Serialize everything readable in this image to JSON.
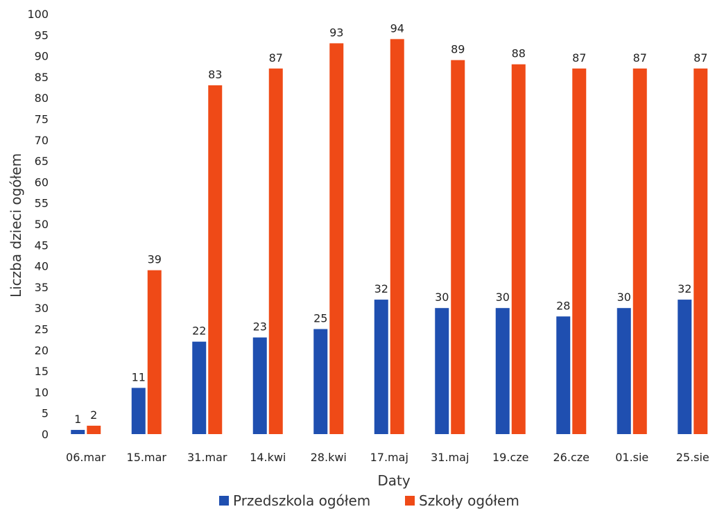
{
  "chart_data": {
    "type": "bar",
    "title": "",
    "xlabel": "Daty",
    "ylabel": "Liczba dzieci ogółem",
    "ylim": [
      0,
      100
    ],
    "ytick_step": 5,
    "grid": false,
    "legend_position": "bottom",
    "categories": [
      "06.mar",
      "15.mar",
      "31.mar",
      "14.kwi",
      "28.kwi",
      "17.maj",
      "31.maj",
      "19.cze",
      "26.cze",
      "01.sie",
      "25.sie"
    ],
    "series": [
      {
        "name": "Przedszkola ogółem",
        "color": "#1f4fb0",
        "values": [
          1,
          11,
          22,
          23,
          25,
          32,
          30,
          30,
          28,
          30,
          32
        ]
      },
      {
        "name": "Szkoły ogółem",
        "color": "#ef4a17",
        "values": [
          2,
          39,
          83,
          87,
          93,
          94,
          89,
          88,
          87,
          87,
          87
        ]
      }
    ]
  }
}
